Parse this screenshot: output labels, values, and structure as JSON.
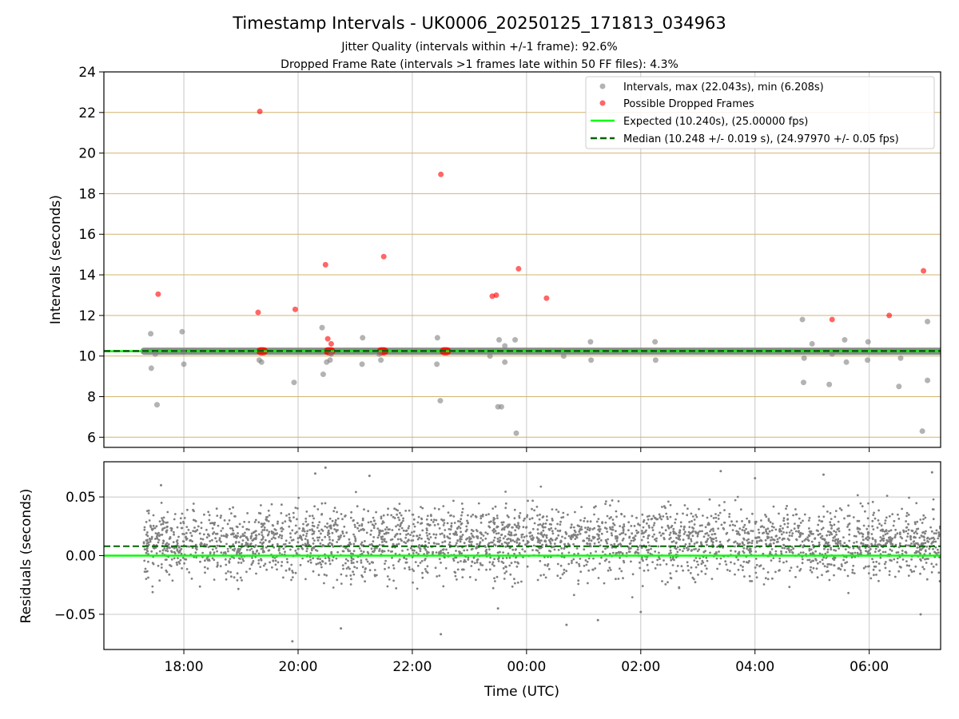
{
  "title": "Timestamp Intervals - UK0006_20250125_171813_034963",
  "subtitle_1": "Jitter Quality (intervals within +/-1 frame): 92.6%",
  "subtitle_2": "Dropped Frame Rate (intervals >1 frames late within 50 FF files): 4.3%",
  "colors": {
    "intervals": "#808080",
    "dropped": "#ff0000",
    "expected": "#00ff00",
    "median": "#006400",
    "hgrid": "#d2b46e",
    "vgrid": "#c8c8c8"
  },
  "chart_data": [
    {
      "type": "scatter",
      "ylabel": "Intervals (seconds)",
      "xlim_hours": [
        16.6,
        31.25
      ],
      "ylim": [
        5.5,
        24
      ],
      "yticks": [
        6,
        8,
        10,
        12,
        14,
        16,
        18,
        20,
        22,
        24
      ],
      "yticklabels": [
        "6",
        "8",
        "10",
        "12",
        "14",
        "16",
        "18",
        "20",
        "22",
        "24"
      ],
      "xticks_hours": [
        18,
        20,
        22,
        24,
        26,
        28,
        30
      ],
      "grid": true,
      "legend_position": "upper right",
      "legend": [
        "Intervals, max (22.043s), min (6.208s)",
        "Possible Dropped Frames",
        "Expected (10.240s), (25.00000 fps)",
        "Median (10.248 +/- 0.019 s), (24.97970 +/- 0.05 fps)"
      ],
      "expected": 10.24,
      "median": 10.248,
      "interval_band": {
        "x_start": 17.3,
        "x_end": 31.25,
        "y": 10.24
      },
      "series": [
        {
          "kind": "intervals",
          "x_hours": [
            17.42,
            17.43,
            17.53,
            17.5,
            17.97,
            17.99,
            18.0,
            19.32,
            19.36,
            19.93,
            20.42,
            20.44,
            20.5,
            20.56,
            20.58,
            21.12,
            21.13,
            21.42,
            21.45,
            22.43,
            22.44,
            22.49,
            23.36,
            23.5,
            23.52,
            23.56,
            23.62,
            23.62,
            23.8,
            23.82,
            24.65,
            25.12,
            25.13,
            26.25,
            26.26,
            28.83,
            28.85,
            28.86,
            29.0,
            29.3,
            29.35,
            29.57,
            29.6,
            29.97,
            29.98,
            30.52,
            30.55,
            30.93,
            31.02,
            31.02
          ],
          "y": [
            11.1,
            9.4,
            7.6,
            10.1,
            11.2,
            10.2,
            9.6,
            9.8,
            9.7,
            8.7,
            11.4,
            9.1,
            9.7,
            9.8,
            10.1,
            9.6,
            10.9,
            10.1,
            9.8,
            9.6,
            10.9,
            7.8,
            10.0,
            7.5,
            10.8,
            7.5,
            10.5,
            9.7,
            10.8,
            6.2,
            10.0,
            10.7,
            9.8,
            10.7,
            9.8,
            11.8,
            8.7,
            9.9,
            10.6,
            8.6,
            10.1,
            10.8,
            9.7,
            9.8,
            10.7,
            8.5,
            9.9,
            6.3,
            11.7,
            8.8
          ]
        },
        {
          "kind": "dropped",
          "x_hours": [
            17.55,
            19.3,
            19.33,
            19.95,
            20.48,
            20.52,
            20.58,
            21.5,
            22.5,
            23.4,
            23.47,
            23.86,
            24.35,
            29.35,
            30.35,
            30.95
          ],
          "y": [
            13.05,
            12.15,
            22.05,
            12.3,
            14.5,
            10.85,
            10.6,
            14.9,
            18.95,
            12.95,
            13.0,
            14.3,
            12.85,
            11.8,
            12.0,
            14.2
          ]
        },
        {
          "kind": "dropped-cluster",
          "x_start": [
            19.27,
            20.45,
            21.38,
            22.48
          ],
          "x_end": [
            19.47,
            20.65,
            21.58,
            22.68
          ]
        }
      ]
    },
    {
      "type": "scatter",
      "ylabel": "Residuals (seconds)",
      "xlabel": "Time (UTC)",
      "xlim_hours": [
        16.6,
        31.25
      ],
      "ylim": [
        -0.08,
        0.08
      ],
      "yticks": [
        -0.05,
        0.0,
        0.05
      ],
      "yticklabels": [
        "−0.05",
        "0.00",
        "0.05"
      ],
      "xticks_hours": [
        18,
        20,
        22,
        24,
        26,
        28,
        30
      ],
      "xticklabels": [
        "18:00",
        "20:00",
        "22:00",
        "00:00",
        "02:00",
        "04:00",
        "06:00"
      ],
      "grid": true,
      "expected": 0.0,
      "median": 0.008,
      "residual_band": {
        "x_start": 17.3,
        "x_end": 31.25,
        "center": 0.012,
        "spread": 0.021
      },
      "series": [
        {
          "kind": "outlier-residuals",
          "x_hours": [
            20.3,
            20.48,
            19.9,
            20.75,
            22.5,
            23.5,
            25.25,
            26.0,
            28.0,
            29.2,
            30.9,
            31.1,
            21.25,
            24.7,
            27.4,
            17.6
          ],
          "y": [
            0.07,
            0.075,
            -0.073,
            -0.062,
            -0.067,
            -0.045,
            -0.055,
            -0.048,
            0.066,
            0.069,
            -0.05,
            0.071,
            0.068,
            -0.059,
            0.072,
            0.06
          ]
        }
      ]
    }
  ]
}
